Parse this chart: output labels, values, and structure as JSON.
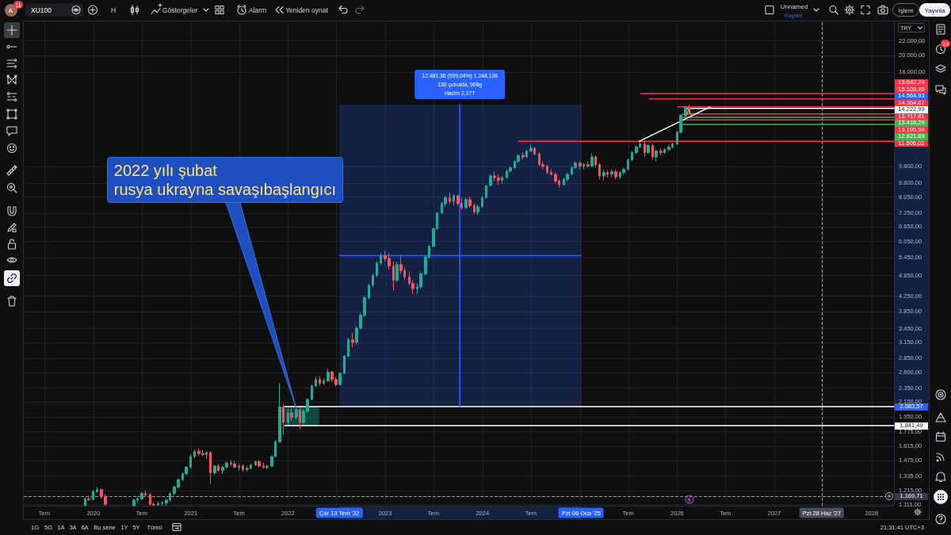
{
  "chart_data": {
    "type": "candlestick",
    "title": "XU100",
    "ylabel": "TRY",
    "x": [
      "2019-12-01",
      "2019-12-15",
      "2020-01-01",
      "2020-01-15",
      "2020-02-01",
      "2020-02-15",
      "2020-06-01",
      "2020-06-15",
      "2020-07-01",
      "2020-07-15",
      "2020-08-01",
      "2020-08-15",
      "2020-09-01",
      "2020-09-15",
      "2020-10-01",
      "2020-10-15",
      "2020-11-01",
      "2020-11-15",
      "2020-12-01",
      "2020-12-15",
      "2021-01-01",
      "2021-01-15",
      "2021-02-01",
      "2021-02-15",
      "2021-03-01",
      "2021-03-15",
      "2021-04-01",
      "2021-04-15",
      "2021-05-01",
      "2021-05-15",
      "2021-06-01",
      "2021-06-15",
      "2021-07-01",
      "2021-07-15",
      "2021-08-01",
      "2021-08-15",
      "2021-09-01",
      "2021-09-15",
      "2021-10-01",
      "2021-10-15",
      "2021-11-01",
      "2021-11-15",
      "2021-12-01",
      "2021-12-15",
      "2022-01-01",
      "2022-01-15",
      "2022-02-01",
      "2022-02-15",
      "2022-03-01",
      "2022-03-15",
      "2022-04-01",
      "2022-04-15",
      "2022-05-01",
      "2022-05-15",
      "2022-06-01",
      "2022-06-15",
      "2022-07-01",
      "2022-07-15",
      "2022-08-01",
      "2022-08-15",
      "2022-09-01",
      "2022-09-15",
      "2022-10-01",
      "2022-10-15",
      "2022-11-01",
      "2022-11-15",
      "2022-12-01",
      "2022-12-15",
      "2023-01-01",
      "2023-01-15",
      "2023-02-01",
      "2023-02-15",
      "2023-03-01",
      "2023-03-15",
      "2023-04-01",
      "2023-04-15",
      "2023-05-01",
      "2023-05-15",
      "2023-06-01",
      "2023-06-15",
      "2023-07-01",
      "2023-07-15",
      "2023-08-01",
      "2023-08-15",
      "2023-09-01",
      "2023-09-15",
      "2023-10-01",
      "2023-10-15",
      "2023-11-01",
      "2023-11-15",
      "2023-12-01",
      "2023-12-15",
      "2024-01-01",
      "2024-01-15",
      "2024-02-01",
      "2024-02-15",
      "2024-03-01",
      "2024-03-15",
      "2024-04-01",
      "2024-04-15",
      "2024-05-01",
      "2024-05-15",
      "2024-06-01",
      "2024-06-15",
      "2024-07-01",
      "2024-07-15",
      "2024-08-01",
      "2024-08-15",
      "2024-09-01",
      "2024-09-15",
      "2024-10-01",
      "2024-10-15",
      "2024-11-01",
      "2024-11-15",
      "2024-12-01",
      "2024-12-15",
      "2025-01-01",
      "2025-01-15",
      "2025-02-01",
      "2025-02-15",
      "2025-03-01",
      "2025-03-15",
      "2025-04-01",
      "2025-04-15",
      "2025-05-01",
      "2025-05-15",
      "2025-06-01",
      "2025-06-15",
      "2025-07-01",
      "2025-07-15",
      "2025-08-01",
      "2025-08-15",
      "2025-09-01",
      "2025-09-15",
      "2025-10-01",
      "2025-10-15",
      "2025-11-01",
      "2025-11-15",
      "2025-12-01",
      "2025-12-15",
      "2026-01-01",
      "2026-01-15",
      "2026-02-01",
      "2026-02-15"
    ],
    "ohlc": [
      [
        1100,
        1160,
        1100,
        1150
      ],
      [
        1150,
        1175,
        1135,
        1145
      ],
      [
        1145,
        1215,
        1140,
        1205
      ],
      [
        1205,
        1240,
        1195,
        1220
      ],
      [
        1220,
        1225,
        1150,
        1165
      ],
      [
        1165,
        1185,
        1100,
        1110
      ],
      [
        1100,
        1150,
        1100,
        1140
      ],
      [
        1140,
        1165,
        1120,
        1150
      ],
      [
        1150,
        1200,
        1140,
        1190
      ],
      [
        1190,
        1215,
        1170,
        1180
      ],
      [
        1180,
        1195,
        1100,
        1110
      ],
      [
        1110,
        1125,
        1100,
        1105
      ],
      [
        1105,
        1130,
        1100,
        1115
      ],
      [
        1115,
        1135,
        1100,
        1120
      ],
      [
        1120,
        1150,
        1100,
        1140
      ],
      [
        1140,
        1200,
        1130,
        1190
      ],
      [
        1190,
        1250,
        1175,
        1240
      ],
      [
        1240,
        1310,
        1230,
        1300
      ],
      [
        1300,
        1360,
        1290,
        1350
      ],
      [
        1350,
        1420,
        1340,
        1410
      ],
      [
        1410,
        1530,
        1400,
        1510
      ],
      [
        1510,
        1580,
        1490,
        1560
      ],
      [
        1560,
        1590,
        1520,
        1540
      ],
      [
        1540,
        1575,
        1510,
        1530
      ],
      [
        1530,
        1560,
        1490,
        1550
      ],
      [
        1550,
        1560,
        1265,
        1360
      ],
      [
        1360,
        1430,
        1340,
        1420
      ],
      [
        1420,
        1440,
        1370,
        1380
      ],
      [
        1380,
        1420,
        1350,
        1410
      ],
      [
        1410,
        1460,
        1400,
        1450
      ],
      [
        1450,
        1475,
        1420,
        1440
      ],
      [
        1440,
        1470,
        1400,
        1410
      ],
      [
        1410,
        1440,
        1380,
        1420
      ],
      [
        1420,
        1435,
        1370,
        1390
      ],
      [
        1390,
        1420,
        1370,
        1400
      ],
      [
        1400,
        1440,
        1390,
        1430
      ],
      [
        1430,
        1470,
        1420,
        1460
      ],
      [
        1460,
        1475,
        1410,
        1420
      ],
      [
        1420,
        1450,
        1395,
        1410
      ],
      [
        1410,
        1430,
        1390,
        1420
      ],
      [
        1420,
        1520,
        1410,
        1510
      ],
      [
        1510,
        1680,
        1500,
        1660
      ],
      [
        1660,
        2420,
        1650,
        2080
      ],
      [
        2080,
        2120,
        1740,
        1880
      ],
      [
        1880,
        2050,
        1850,
        2000
      ],
      [
        2000,
        2060,
        1900,
        1940
      ],
      [
        1940,
        2080,
        1920,
        2040
      ],
      [
        2040,
        2070,
        1800,
        1880
      ],
      [
        1880,
        2050,
        1860,
        2020
      ],
      [
        2020,
        2200,
        2000,
        2180
      ],
      [
        2180,
        2400,
        2170,
        2380
      ],
      [
        2380,
        2520,
        2360,
        2480
      ],
      [
        2480,
        2530,
        2380,
        2420
      ],
      [
        2420,
        2500,
        2400,
        2460
      ],
      [
        2460,
        2660,
        2440,
        2600
      ],
      [
        2600,
        2620,
        2450,
        2480
      ],
      [
        2480,
        2520,
        2370,
        2400
      ],
      [
        2400,
        2600,
        2390,
        2580
      ],
      [
        2580,
        2900,
        2570,
        2880
      ],
      [
        2880,
        3250,
        2870,
        3200
      ],
      [
        3200,
        3350,
        3050,
        3150
      ],
      [
        3150,
        3500,
        3100,
        3450
      ],
      [
        3450,
        3800,
        3420,
        3750
      ],
      [
        3750,
        4250,
        3700,
        4200
      ],
      [
        4200,
        4600,
        4150,
        4550
      ],
      [
        4550,
        4900,
        4500,
        4850
      ],
      [
        4850,
        5300,
        4800,
        5250
      ],
      [
        5250,
        5600,
        5200,
        5500
      ],
      [
        5500,
        5680,
        5300,
        5400
      ],
      [
        5400,
        5600,
        5050,
        5150
      ],
      [
        5150,
        5300,
        4400,
        4700
      ],
      [
        4700,
        5300,
        4650,
        5200
      ],
      [
        5200,
        5500,
        4900,
        5000
      ],
      [
        5000,
        5100,
        4700,
        4800
      ],
      [
        4800,
        4950,
        4550,
        4600
      ],
      [
        4600,
        4700,
        4300,
        4450
      ],
      [
        4450,
        4600,
        4310,
        4500
      ],
      [
        4500,
        4950,
        4450,
        4900
      ],
      [
        4900,
        5500,
        4850,
        5450
      ],
      [
        5450,
        5900,
        5400,
        5850
      ],
      [
        5850,
        6600,
        5800,
        6550
      ],
      [
        6550,
        7300,
        6500,
        7250
      ],
      [
        7250,
        7800,
        7200,
        7700
      ],
      [
        7700,
        8100,
        7550,
        8000
      ],
      [
        8000,
        8270,
        7700,
        7800
      ],
      [
        7800,
        8200,
        7600,
        8100
      ],
      [
        8100,
        8150,
        7600,
        7700
      ],
      [
        7700,
        7950,
        7400,
        7500
      ],
      [
        7500,
        8000,
        7450,
        7900
      ],
      [
        7900,
        8050,
        7500,
        7600
      ],
      [
        7600,
        7700,
        7200,
        7300
      ],
      [
        7300,
        7650,
        7160,
        7550
      ],
      [
        7550,
        8100,
        7500,
        8000
      ],
      [
        8000,
        8700,
        7950,
        8650
      ],
      [
        8650,
        9300,
        8600,
        9200
      ],
      [
        9200,
        9500,
        8900,
        9100
      ],
      [
        9100,
        9300,
        8700,
        8950
      ],
      [
        8950,
        9200,
        8750,
        9100
      ],
      [
        9100,
        9600,
        9050,
        9500
      ],
      [
        9500,
        9800,
        9400,
        9700
      ],
      [
        9700,
        10200,
        9650,
        10100
      ],
      [
        10100,
        10600,
        10000,
        10500
      ],
      [
        10500,
        10700,
        10200,
        10400
      ],
      [
        10400,
        10900,
        10350,
        10800
      ],
      [
        10800,
        11250,
        10750,
        11000
      ],
      [
        11000,
        11100,
        10500,
        10600
      ],
      [
        10600,
        10700,
        9800,
        9900
      ],
      [
        9900,
        10100,
        9600,
        9800
      ],
      [
        9800,
        9900,
        9300,
        9400
      ],
      [
        9400,
        9600,
        9200,
        9300
      ],
      [
        9300,
        9400,
        8800,
        8900
      ],
      [
        8900,
        9000,
        8540,
        8700
      ],
      [
        8700,
        9100,
        8650,
        9000
      ],
      [
        9000,
        9400,
        8900,
        9300
      ],
      [
        9300,
        9800,
        9250,
        9700
      ],
      [
        9700,
        10100,
        9650,
        10000
      ],
      [
        10000,
        10100,
        9600,
        9800
      ],
      [
        9800,
        10000,
        9600,
        9900
      ],
      [
        9900,
        10100,
        9700,
        9800
      ],
      [
        9800,
        10650,
        9750,
        10400
      ],
      [
        10400,
        10500,
        9700,
        9900
      ],
      [
        9900,
        10000,
        9000,
        9200
      ],
      [
        9200,
        9600,
        8900,
        9400
      ],
      [
        9400,
        9550,
        9100,
        9300
      ],
      [
        9300,
        9600,
        9100,
        9450
      ],
      [
        9450,
        9600,
        9000,
        9150
      ],
      [
        9150,
        9500,
        9050,
        9400
      ],
      [
        9400,
        9700,
        9300,
        9600
      ],
      [
        9600,
        10300,
        9550,
        10200
      ],
      [
        10200,
        10800,
        10150,
        10700
      ],
      [
        10700,
        11200,
        10600,
        11100
      ],
      [
        11100,
        11500,
        11000,
        11300
      ],
      [
        11300,
        11500,
        10400,
        10700
      ],
      [
        10700,
        11300,
        10600,
        11200
      ],
      [
        11200,
        11300,
        10200,
        10400
      ],
      [
        10400,
        10900,
        10100,
        10800
      ],
      [
        10800,
        11000,
        10500,
        10700
      ],
      [
        10700,
        11000,
        10600,
        10900
      ],
      [
        10900,
        11200,
        10800,
        11100
      ],
      [
        11100,
        11400,
        11000,
        11300
      ],
      [
        11300,
        12300,
        11250,
        12200
      ],
      [
        12200,
        13700,
        12100,
        13600
      ],
      [
        13600,
        14400,
        13400,
        14300
      ],
      [
        14300,
        14550,
        13700,
        14000
      ]
    ],
    "colors": [
      "#22ab94",
      "#f7525f",
      "#22ab94",
      "#22ab94",
      "#f7525f",
      "#f7525f",
      "#22ab94",
      "#22ab94",
      "#22ab94",
      "#f7525f",
      "#f7525f",
      "#f7525f",
      "#22ab94",
      "#22ab94",
      "#22ab94",
      "#22ab94",
      "#22ab94",
      "#22ab94",
      "#22ab94",
      "#22ab94",
      "#22ab94",
      "#22ab94",
      "#f7525f",
      "#f7525f",
      "#22ab94",
      "#f7525f",
      "#22ab94",
      "#f7525f",
      "#22ab94",
      "#22ab94",
      "#f7525f",
      "#f7525f",
      "#22ab94",
      "#f7525f",
      "#22ab94",
      "#22ab94",
      "#22ab94",
      "#f7525f",
      "#f7525f",
      "#22ab94",
      "#22ab94",
      "#22ab94",
      "#22ab94",
      "#f7525f",
      "#22ab94",
      "#f7525f",
      "#22ab94",
      "#f7525f",
      "#22ab94",
      "#22ab94",
      "#22ab94",
      "#22ab94",
      "#f7525f",
      "#22ab94",
      "#22ab94",
      "#f7525f",
      "#f7525f",
      "#22ab94",
      "#22ab94",
      "#22ab94",
      "#f7525f",
      "#22ab94",
      "#22ab94",
      "#22ab94",
      "#22ab94",
      "#22ab94",
      "#22ab94",
      "#22ab94",
      "#f7525f",
      "#f7525f",
      "#f7525f",
      "#22ab94",
      "#f7525f",
      "#f7525f",
      "#f7525f",
      "#f7525f",
      "#22ab94",
      "#22ab94",
      "#22ab94",
      "#22ab94",
      "#22ab94",
      "#22ab94",
      "#22ab94",
      "#22ab94",
      "#f7525f",
      "#22ab94",
      "#f7525f",
      "#f7525f",
      "#22ab94",
      "#f7525f",
      "#f7525f",
      "#22ab94",
      "#22ab94",
      "#22ab94",
      "#22ab94",
      "#f7525f",
      "#f7525f",
      "#22ab94",
      "#22ab94",
      "#22ab94",
      "#22ab94",
      "#22ab94",
      "#f7525f",
      "#22ab94",
      "#22ab94",
      "#f7525f",
      "#f7525f",
      "#f7525f",
      "#f7525f",
      "#f7525f",
      "#f7525f",
      "#f7525f",
      "#22ab94",
      "#22ab94",
      "#22ab94",
      "#22ab94",
      "#f7525f",
      "#22ab94",
      "#f7525f",
      "#22ab94",
      "#f7525f",
      "#f7525f",
      "#22ab94",
      "#f7525f",
      "#22ab94",
      "#f7525f",
      "#22ab94",
      "#22ab94",
      "#22ab94",
      "#22ab94",
      "#22ab94",
      "#22ab94",
      "#f7525f",
      "#22ab94",
      "#f7525f",
      "#22ab94",
      "#f7525f",
      "#22ab94",
      "#22ab94",
      "#22ab94",
      "#22ab94",
      "#22ab94",
      "#22ab94",
      "#f7525f"
    ],
    "series": [
      {
        "type": "line",
        "x": [
          "2025-08-18",
          "2028-03-25"
        ],
        "values": [
          15642.29,
          15642.29
        ],
        "color": "#f23645",
        "value_labels": [
          null,
          "15.642,29"
        ]
      },
      {
        "type": "line",
        "x": [
          "2025-09-18",
          "2028-03-25"
        ],
        "values": [
          15108.46,
          15108.46
        ],
        "color": "#f23645",
        "value_labels": [
          null,
          "15.108,46"
        ]
      },
      {
        "type": "line",
        "x": [
          "2026-01-05",
          "2028-03-25"
        ],
        "values": [
          14364.67,
          14364.67
        ],
        "color": "#f23645",
        "value_labels": [
          null,
          "14.364,67"
        ]
      },
      {
        "type": "line",
        "x": [
          "2026-02-05",
          "2028-03-25"
        ],
        "values": [
          14222.99,
          14222.99
        ],
        "color": "#ffffff",
        "value_labels": [
          null,
          "14.222,99"
        ]
      },
      {
        "type": "line",
        "x": [
          "2026-01-20",
          "2028-03-25"
        ],
        "values": [
          13717.81,
          13717.81
        ],
        "color": "#f23645",
        "value_labels": [
          null,
          "13.717,81"
        ]
      },
      {
        "type": "line",
        "x": [
          "2026-01-20",
          "2028-03-25"
        ],
        "values": [
          13416.29,
          13416.29
        ],
        "color": "#4caf50",
        "value_labels": [
          null,
          "13.416,29"
        ]
      },
      {
        "type": "line",
        "x": [
          "2026-01-20",
          "2028-03-25"
        ],
        "values": [
          13195.54,
          13195.54
        ],
        "color": "#f23645",
        "value_labels": [
          null,
          "13.195,54"
        ]
      },
      {
        "type": "line",
        "x": [
          "2026-01-20",
          "2028-03-25"
        ],
        "values": [
          12821.89,
          12821.89
        ],
        "color": "#4caf50",
        "value_labels": [
          null,
          "12.821,89"
        ]
      },
      {
        "type": "line",
        "x": [
          "2024-05-15",
          "2028-03-25"
        ],
        "values": [
          11506.02,
          11506.02
        ],
        "color": "#f23645",
        "value_labels": [
          null,
          "11.506,02"
        ]
      },
      {
        "type": "line",
        "x": [
          "2021-12-20",
          "2028-03-25"
        ],
        "values": [
          2083.57,
          2083.57
        ],
        "color": "#ffffff"
      },
      {
        "type": "line",
        "x": [
          "2021-12-20",
          "2028-03-25"
        ],
        "values": [
          1841.49,
          1841.49
        ],
        "color": "#ffffff",
        "value_labels": [
          null,
          "1.841,49"
        ]
      },
      {
        "type": "line",
        "x": [
          "2025-08-11",
          "2026-05-05"
        ],
        "values": [
          11500,
          14350
        ],
        "color": "#ffffff"
      },
      {
        "type": "line",
        "x": [
          "2022-07-13",
          "2025-01-06"
        ],
        "values": [
          5510,
          5510
        ],
        "lower": [
          2083.57,
          2083.57
        ],
        "upper": [
          14564.93,
          14564.93
        ],
        "color": "#2962ff"
      },
      {
        "type": "line",
        "x": [
          "2023-10-08",
          "2023-10-08"
        ],
        "values": [
          2083.57,
          14564.93
        ],
        "color": "#2962ff"
      }
    ],
    "xlim": [
      "2019-04-15",
      "2028-03-25"
    ],
    "ylim": [
      1100,
      24900
    ],
    "xticks": [
      {
        "value": "2019-07-01",
        "label": "Tem"
      },
      {
        "value": "2020-01-01",
        "label": "2020"
      },
      {
        "value": "2020-07-01",
        "label": "Tem"
      },
      {
        "value": "2021-01-01",
        "label": "2021"
      },
      {
        "value": "2021-07-01",
        "label": "Tem"
      },
      {
        "value": "2022-01-01",
        "label": "2022"
      },
      {
        "value": "2022-07-01",
        "label": null
      },
      {
        "value": "2023-01-01",
        "label": "2023"
      },
      {
        "value": "2023-07-01",
        "label": "Tem"
      },
      {
        "value": "2024-01-01",
        "label": "2024"
      },
      {
        "value": "2024-07-01",
        "label": "Tem"
      },
      {
        "value": "2025-01-01",
        "label": null
      },
      {
        "value": "2025-07-01",
        "label": "Tem"
      },
      {
        "value": "2026-01-01",
        "label": "2026"
      },
      {
        "value": "2026-07-01",
        "label": "Tem"
      },
      {
        "value": "2027-01-01",
        "label": "2027"
      },
      {
        "value": "2027-07-01",
        "label": null
      },
      {
        "value": "2028-01-01",
        "label": "2028"
      }
    ],
    "yticks": [
      {
        "value": 22000,
        "label": "22.000,00"
      },
      {
        "value": 20000,
        "label": "20.000,00"
      },
      {
        "value": 18000,
        "label": "18.000,00"
      },
      {
        "value": 9800,
        "label": "9.800,00"
      },
      {
        "value": 8800,
        "label": "8.800,00"
      },
      {
        "value": 8050,
        "label": "8.050,00"
      },
      {
        "value": 7250,
        "label": "7.250,00"
      },
      {
        "value": 6650,
        "label": "6.650,00"
      },
      {
        "value": 6050,
        "label": "6.050,00"
      },
      {
        "value": 5450,
        "label": "5.450,00"
      },
      {
        "value": 4850,
        "label": "4.850,00"
      },
      {
        "value": 4250,
        "label": "4.250,00"
      },
      {
        "value": 3850,
        "label": "3.850,00"
      },
      {
        "value": 3450,
        "label": "3.450,00"
      },
      {
        "value": 3150,
        "label": "3.150,00"
      },
      {
        "value": 2850,
        "label": "2.850,00"
      },
      {
        "value": 2600,
        "label": "2.600,00"
      },
      {
        "value": 2350,
        "label": "2.350,00"
      },
      {
        "value": 2150,
        "label": "2.150,00"
      },
      {
        "value": 1950,
        "label": "1.950,00"
      },
      {
        "value": 1775,
        "label": "1.775,00"
      },
      {
        "value": 1615,
        "label": "1.615,00"
      },
      {
        "value": 1475,
        "label": "1.475,00"
      },
      {
        "value": 1335,
        "label": "1.335,00"
      },
      {
        "value": 1215,
        "label": "1.215,00"
      },
      {
        "value": 1111,
        "label": "1.111,00"
      }
    ],
    "log": true,
    "grid": true,
    "ref_lines": [
      {
        "axis": "x",
        "value": "2027-06-28",
        "label": "Pzt 28 Haz '27",
        "line_style": "dashed",
        "color": "#9598a1"
      },
      {
        "axis": "y",
        "value": 1169.71,
        "label": "1.169,71",
        "line_style": "dashed",
        "color": "#9598a1"
      }
    ],
    "annotations": [
      "A",
      "11",
      "H",
      "Göstergeler",
      "Alarm",
      "Yeniden oynat",
      "Unnamed",
      "Kaydet",
      "İşlem",
      "Yayınla",
      "19",
      "1G",
      "5G",
      "1A",
      "3A",
      "6A",
      "Bu sene",
      "1Y",
      "5Y",
      "Tümü",
      "21:31:41 UTC+3",
      "14.564,93",
      "2.083,57",
      {
        "text": "2022 yılı şubat\nrusya ukrayna savaşıbaşlangıcı",
        "x": "2022-02-01",
        "y": 2060
      },
      {
        "text": "12.481,36 (599,04%) 1.248.136\n130 çubukta, 908g\nHacim 2,27T",
        "x": "2023-10-08",
        "y": 14564.93
      },
      {
        "text": "Çar 13 Tem '22",
        "x": "2022-07-13"
      },
      {
        "text": "Pzt 06 Oca '25",
        "x": "2025-01-06"
      }
    ]
  }
}
